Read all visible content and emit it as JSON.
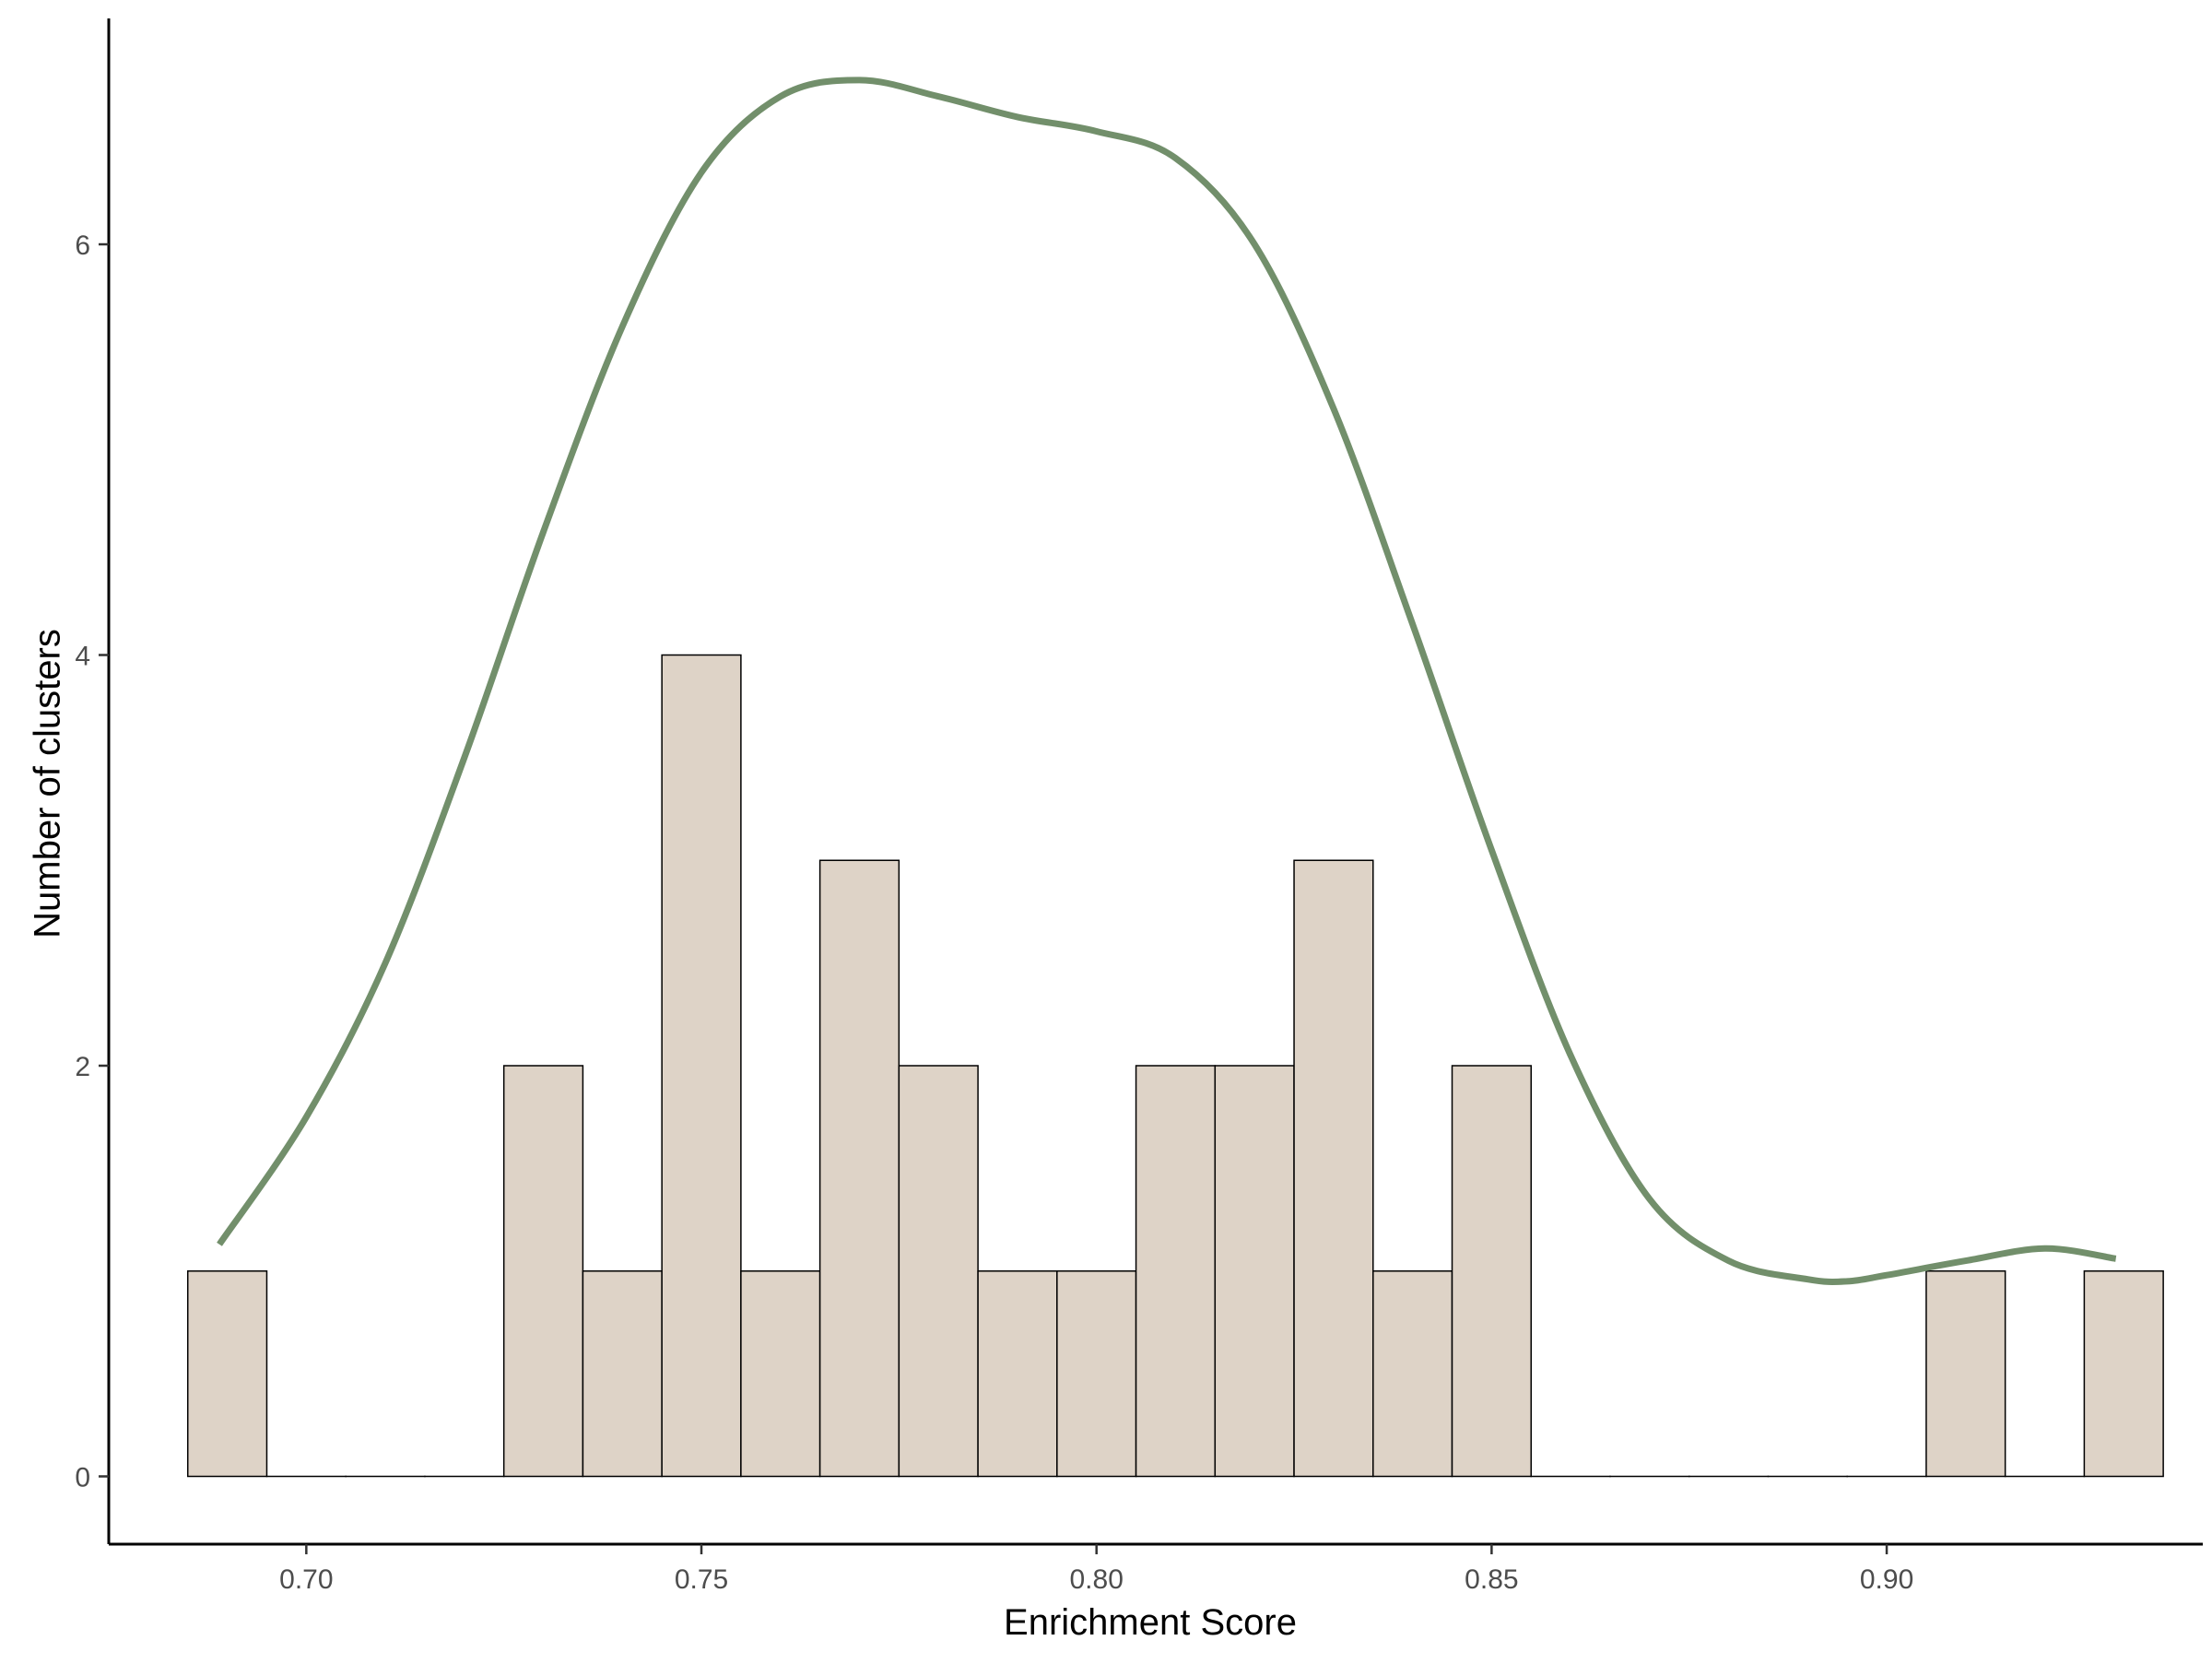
{
  "chart_data": {
    "type": "bar",
    "subtype": "histogram-with-density-curve",
    "xlabel": "Enrichment Score",
    "ylabel": "Number of clusters",
    "xlim": [
      0.675,
      0.94
    ],
    "ylim": [
      -0.33,
      7.1
    ],
    "x_ticks": [
      0.7,
      0.75,
      0.8,
      0.85,
      0.9
    ],
    "x_tick_labels": [
      "0.70",
      "0.75",
      "0.80",
      "0.85",
      "0.90"
    ],
    "y_ticks": [
      0,
      2,
      4,
      6
    ],
    "y_tick_labels": [
      "0",
      "2",
      "4",
      "6"
    ],
    "bin_width": 0.01,
    "bin_centers": [
      0.69,
      0.7,
      0.71,
      0.72,
      0.73,
      0.74,
      0.75,
      0.76,
      0.77,
      0.78,
      0.79,
      0.8,
      0.81,
      0.82,
      0.83,
      0.84,
      0.85,
      0.86,
      0.87,
      0.88,
      0.89,
      0.9,
      0.91,
      0.92,
      0.93
    ],
    "counts": [
      1,
      0,
      0,
      0,
      2,
      1,
      4,
      1,
      3,
      2,
      1,
      1,
      2,
      2,
      3,
      1,
      2,
      0,
      0,
      0,
      0,
      0,
      1,
      0,
      1
    ],
    "density_curve": {
      "x": [
        0.689,
        0.7,
        0.71,
        0.72,
        0.73,
        0.74,
        0.75,
        0.76,
        0.77,
        0.78,
        0.79,
        0.8,
        0.81,
        0.82,
        0.83,
        0.84,
        0.85,
        0.86,
        0.87,
        0.88,
        0.89,
        0.895,
        0.9,
        0.91,
        0.92,
        0.929
      ],
      "y": [
        1.13,
        1.75,
        2.5,
        3.5,
        4.6,
        5.6,
        6.35,
        6.72,
        6.8,
        6.72,
        6.62,
        6.55,
        6.42,
        6.0,
        5.2,
        4.15,
        3.05,
        2.05,
        1.35,
        1.05,
        0.96,
        0.95,
        0.98,
        1.05,
        1.11,
        1.06
      ]
    },
    "colors": {
      "bar_fill": "#ded3c7",
      "bar_stroke": "#000000",
      "curve": "#728f6b",
      "axis": "#000000"
    },
    "grid": false,
    "legend": "none"
  }
}
